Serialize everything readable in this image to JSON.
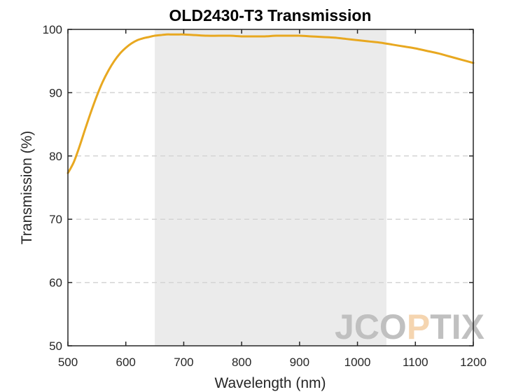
{
  "chart_data": {
    "type": "line",
    "title": "OLD2430-T3 Transmission",
    "xlabel": "Wavelength (nm)",
    "ylabel": "Transmission (%)",
    "xlim": [
      500,
      1200
    ],
    "ylim": [
      50,
      100
    ],
    "xticks": [
      500,
      600,
      700,
      800,
      900,
      1000,
      1100,
      1200
    ],
    "yticks": [
      50,
      60,
      70,
      80,
      90,
      100
    ],
    "grid": {
      "horizontal_dashed": true,
      "vertical": false
    },
    "shaded_band": {
      "x_start": 650,
      "x_end": 1050,
      "color": "#ebebeb"
    },
    "line_color": "#e8a820",
    "series": [
      {
        "x": [
          500,
          510,
          520,
          530,
          540,
          550,
          560,
          570,
          580,
          590,
          600,
          610,
          620,
          630,
          640,
          650,
          660,
          670,
          680,
          690,
          700,
          720,
          740,
          760,
          780,
          800,
          820,
          840,
          860,
          880,
          900,
          920,
          940,
          960,
          980,
          1000,
          1020,
          1040,
          1060,
          1080,
          1100,
          1120,
          1140,
          1160,
          1180,
          1200
        ],
        "y": [
          77.3,
          79.0,
          81.5,
          84.3,
          87.0,
          89.5,
          91.7,
          93.5,
          95.0,
          96.2,
          97.1,
          97.8,
          98.3,
          98.6,
          98.8,
          99.0,
          99.1,
          99.2,
          99.2,
          99.2,
          99.2,
          99.1,
          99.0,
          99.0,
          99.0,
          98.9,
          98.9,
          98.9,
          99.0,
          99.0,
          99.0,
          98.9,
          98.8,
          98.7,
          98.5,
          98.3,
          98.1,
          97.9,
          97.6,
          97.3,
          97.0,
          96.6,
          96.2,
          95.7,
          95.2,
          94.7
        ]
      }
    ]
  },
  "watermark": {
    "text": "JCOPTIX",
    "gray": "#c0c0c0",
    "accent": "#f5d5b0"
  }
}
